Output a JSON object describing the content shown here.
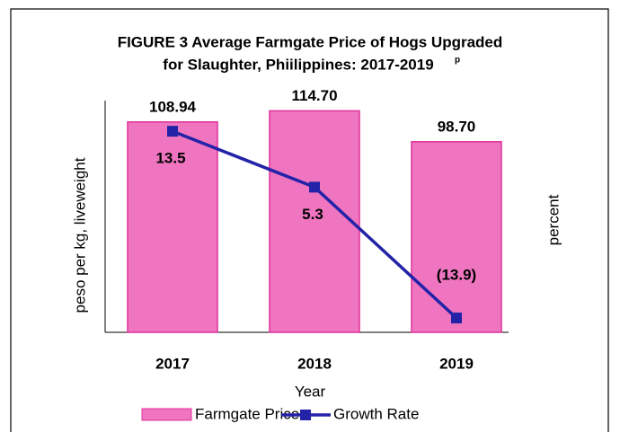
{
  "chart_data": {
    "type": "bar_line",
    "title_lines": [
      "FIGURE 3  Average Farmgate Price of Hogs Upgraded",
      "for Slaughter, Phiilippines: 2017-2019"
    ],
    "title_superscript": "p",
    "x_label": "Year",
    "y_label": "peso per kg, liveweight",
    "y2_label": "percent",
    "categories": [
      "2017",
      "2018",
      "2019"
    ],
    "ylim": [
      0,
      120
    ],
    "y2lim": [
      -16,
      18
    ],
    "series": [
      {
        "name": "Farmgate Price",
        "color": "#f075c0",
        "values": [
          108.94,
          114.7,
          98.7
        ],
        "value_labels": [
          "108.94",
          "114.70",
          "98.70"
        ]
      },
      {
        "name": "Growth Rate",
        "color": "#2323a8",
        "axis": "y2",
        "values": [
          13.5,
          5.3,
          -13.9
        ],
        "value_labels": [
          "13.5",
          "5.3",
          "(13.9)"
        ]
      }
    ]
  }
}
